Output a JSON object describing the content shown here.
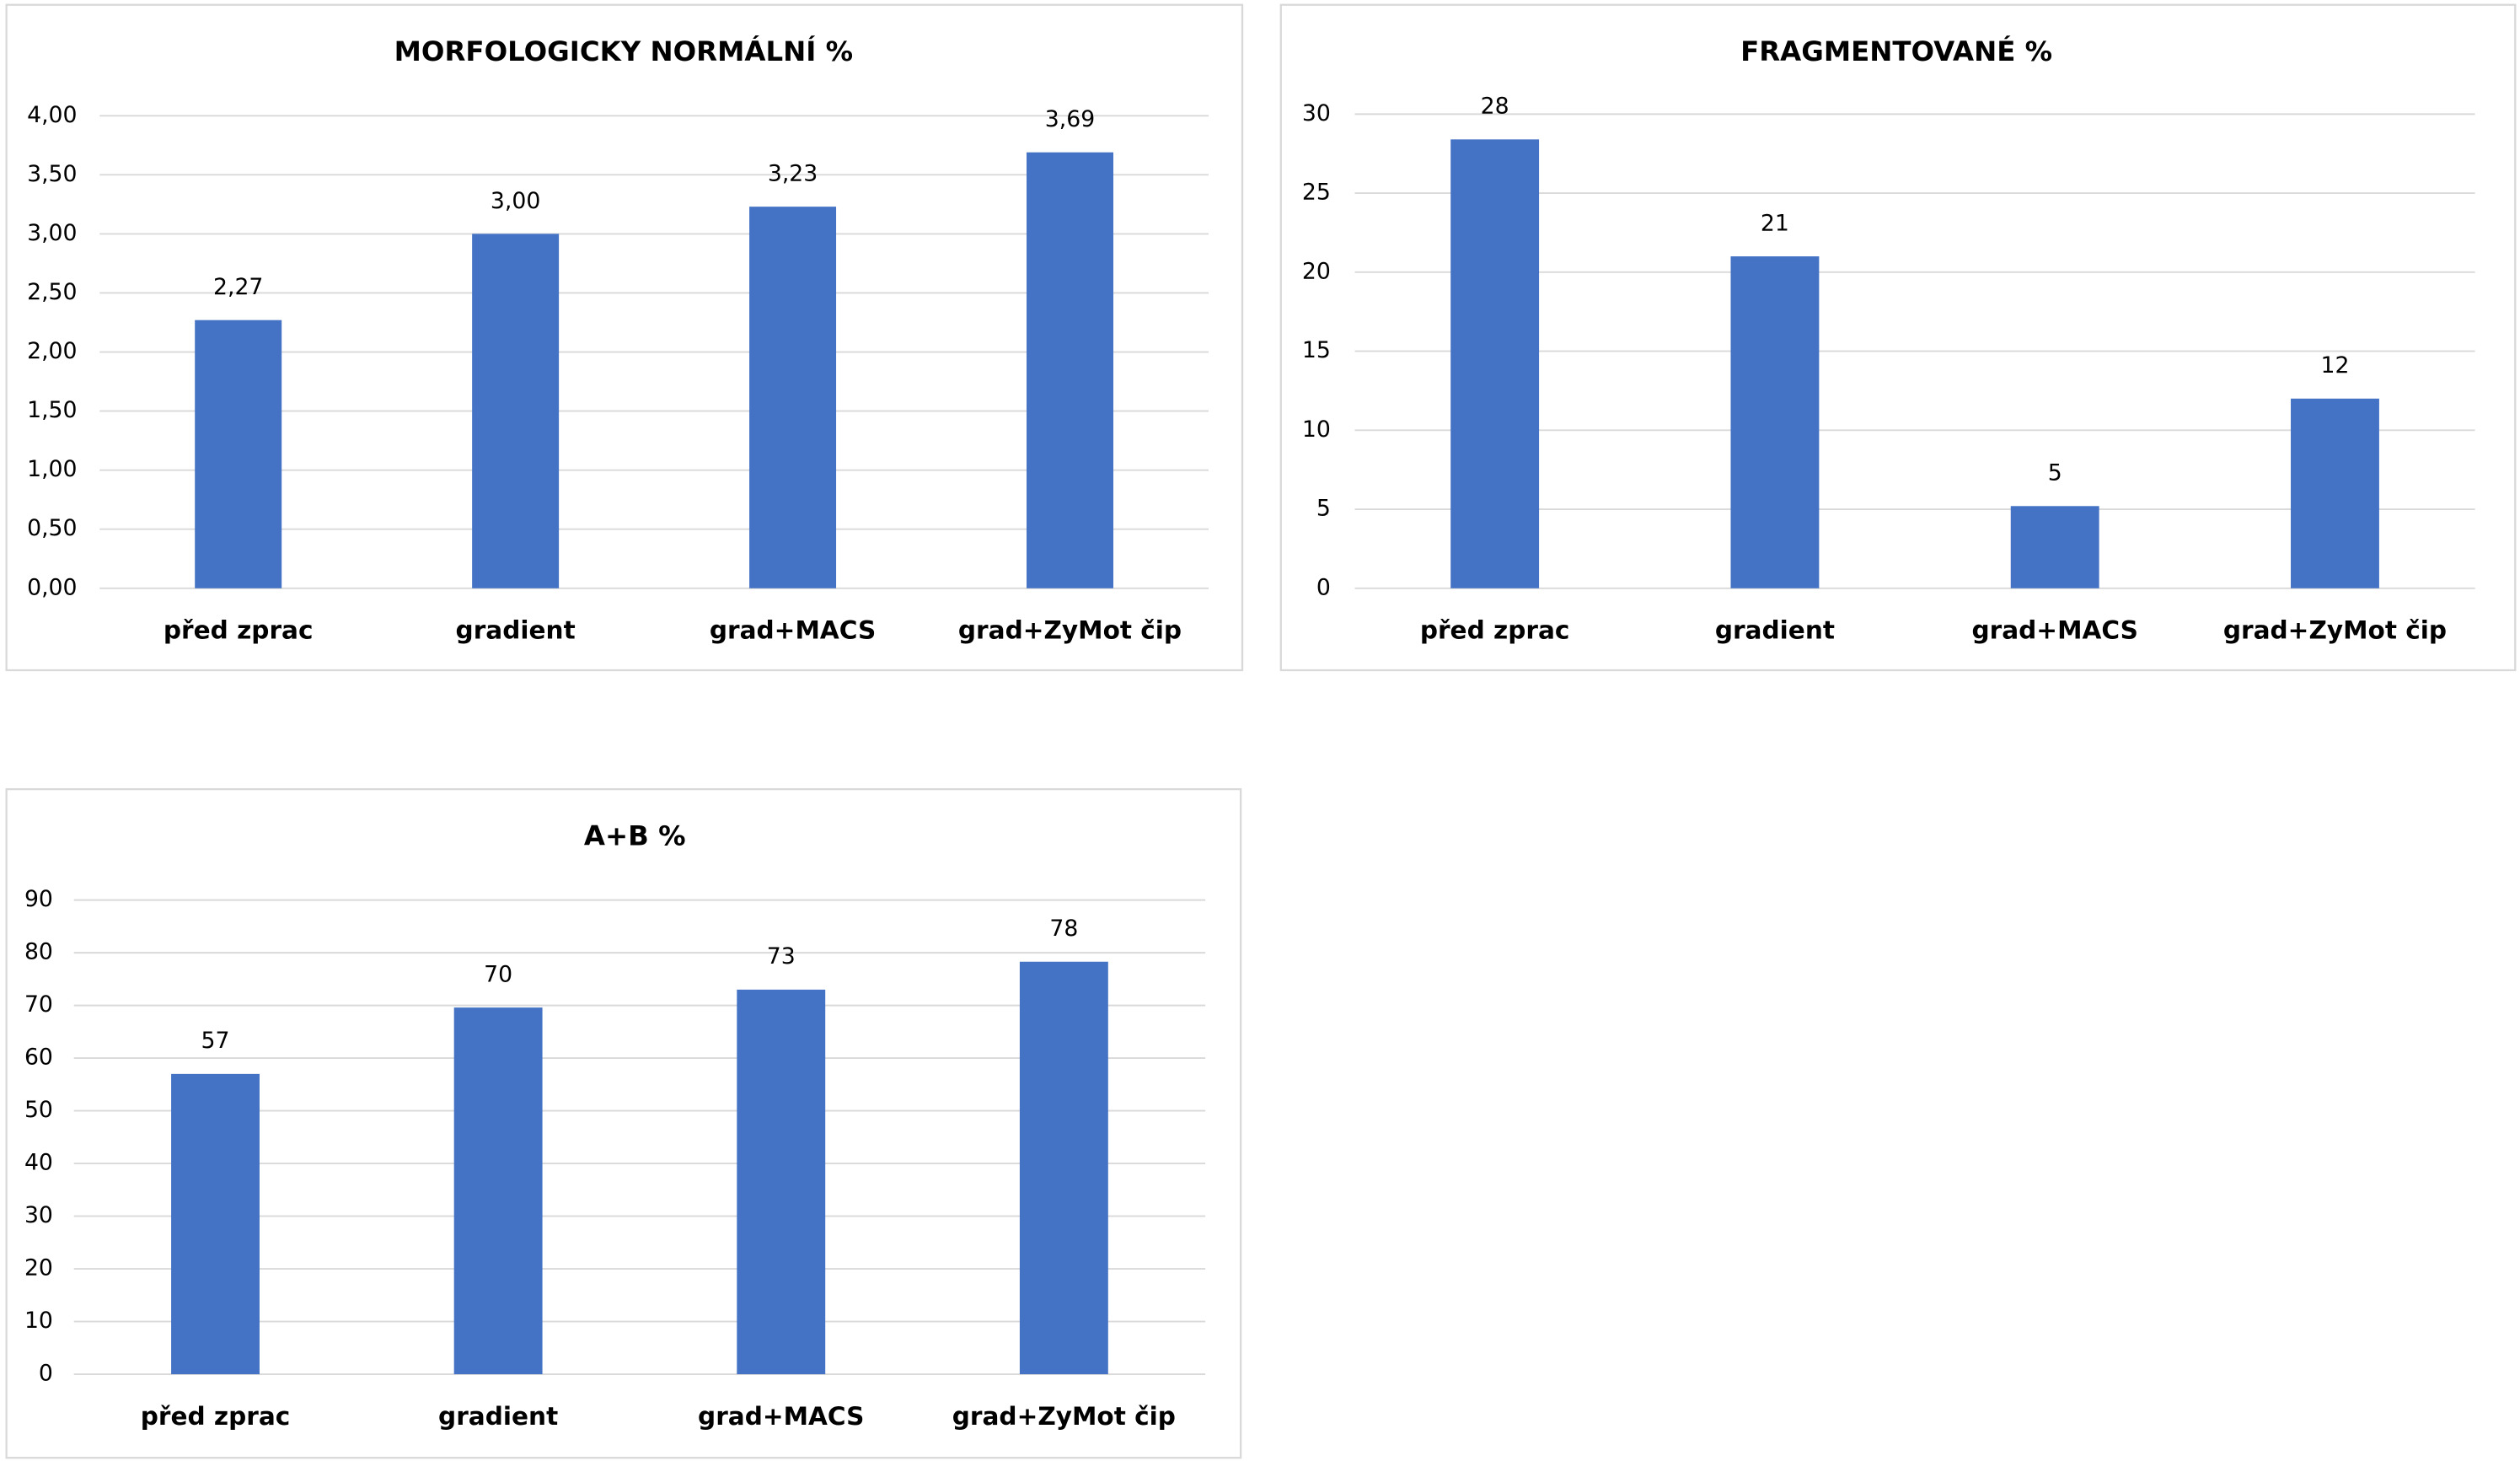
{
  "chart_data": [
    {
      "type": "bar",
      "title": "MORFOLOGICKY NORMÁLNÍ %",
      "categories": [
        "před zprac",
        "gradient",
        "grad+MACS",
        "grad+ZyMot čip"
      ],
      "values": [
        2.27,
        3.0,
        3.23,
        3.69
      ],
      "value_labels": [
        "2,27",
        "3,00",
        "3,23",
        "3,69"
      ],
      "color": "#4472c4",
      "ylim": [
        0,
        4
      ],
      "yticks": [
        {
          "value": 0,
          "label": "0,00"
        },
        {
          "value": 0.5,
          "label": "0,50"
        },
        {
          "value": 1,
          "label": "1,00"
        },
        {
          "value": 1.5,
          "label": "1,50"
        },
        {
          "value": 2,
          "label": "2,00"
        },
        {
          "value": 2.5,
          "label": "2,50"
        },
        {
          "value": 3,
          "label": "3,00"
        },
        {
          "value": 3.5,
          "label": "3,50"
        },
        {
          "value": 4,
          "label": "4,00"
        }
      ],
      "grid": true
    },
    {
      "type": "bar",
      "title": "FRAGMENTOVANÉ %",
      "categories": [
        "před zprac",
        "gradient",
        "grad+MACS",
        "grad+ZyMot čip"
      ],
      "values": [
        28.4,
        21,
        5.2,
        12
      ],
      "value_labels": [
        "28",
        "21",
        "5",
        "12"
      ],
      "color": "#4472c4",
      "ylim": [
        0,
        30
      ],
      "yticks": [
        0,
        5,
        10,
        15,
        20,
        25,
        30
      ],
      "grid": true
    },
    {
      "type": "bar",
      "title": "A+B %",
      "categories": [
        "před zprac",
        "gradient",
        "grad+MACS",
        "grad+ZyMot čip"
      ],
      "values": [
        57,
        69.6,
        73,
        78.3
      ],
      "value_labels": [
        "57",
        "70",
        "73",
        "78"
      ],
      "color": "#4472c4",
      "ylim": [
        0,
        90
      ],
      "yticks": [
        0,
        10,
        20,
        30,
        40,
        50,
        60,
        70,
        80,
        90
      ],
      "grid": true
    }
  ]
}
